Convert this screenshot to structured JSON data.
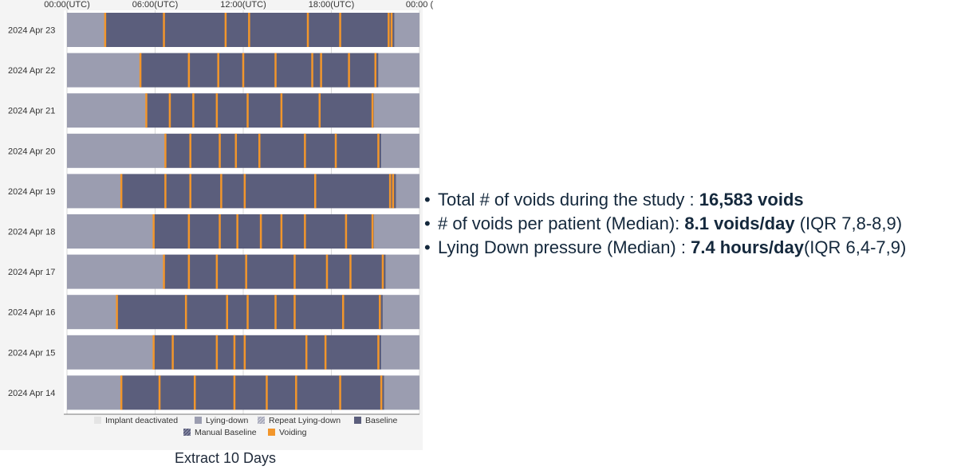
{
  "caption": "Extract 10 Days",
  "stats": [
    {
      "text": "Total # of voids during the study : ",
      "value": "16,583 voids",
      "tail": ""
    },
    {
      "text": "# of voids per patient (Median): ",
      "value": "8.1 voids/day",
      "tail": " (IQR 7,8-8,9)"
    },
    {
      "text": "Lying Down pressure (Median) : ",
      "value": "7.4 hours/day",
      "tail": "(IQR 6,4-7,9)"
    }
  ],
  "chart_data": {
    "type": "timeline",
    "x_unit": "hour_utc",
    "xlim": [
      0,
      24
    ],
    "x_ticks": [
      {
        "value": 0,
        "label": "00:00(UTC)"
      },
      {
        "value": 6,
        "label": "06:00(UTC)"
      },
      {
        "value": 12,
        "label": "12:00(UTC)"
      },
      {
        "value": 18,
        "label": "18:00(UTC)"
      },
      {
        "value": 24,
        "label": "00:00 ("
      }
    ],
    "grid": true,
    "legend_position": "bottom",
    "legend": [
      {
        "name": "Implant deactivated",
        "color": "#e4e4e4",
        "pattern": "none"
      },
      {
        "name": "Lying-down",
        "color": "#9b9db0",
        "pattern": "none"
      },
      {
        "name": "Repeat Lying-down",
        "color": "#a6a8ba",
        "pattern": "hatch"
      },
      {
        "name": "Baseline",
        "color": "#5b5e7c",
        "pattern": "none"
      },
      {
        "name": "Manual Baseline",
        "color": "#5b5e7c",
        "pattern": "hatch"
      },
      {
        "name": "Voiding",
        "color": "#f2962b",
        "pattern": "none"
      }
    ],
    "rows": [
      {
        "day": "2024 Apr 23",
        "baseline": [
          2.6,
          22.3
        ],
        "voids": [
          2.6,
          6.6,
          10.8,
          12.4,
          16.4,
          18.6,
          21.9,
          22.1
        ]
      },
      {
        "day": "2024 Apr 22",
        "baseline": [
          5.0,
          21.2
        ],
        "voids": [
          5.0,
          8.3,
          10.3,
          12.0,
          14.2,
          16.7,
          17.3,
          19.2,
          21.0
        ]
      },
      {
        "day": "2024 Apr 21",
        "baseline": [
          5.4,
          20.9
        ],
        "voids": [
          5.4,
          7.0,
          8.6,
          10.2,
          12.3,
          14.6,
          17.2,
          20.8
        ]
      },
      {
        "day": "2024 Apr 20",
        "baseline": [
          6.7,
          21.4
        ],
        "voids": [
          6.7,
          8.4,
          10.4,
          11.5,
          13.1,
          16.2,
          18.3,
          21.2
        ]
      },
      {
        "day": "2024 Apr 19",
        "baseline": [
          3.7,
          22.4
        ],
        "voids": [
          3.7,
          6.7,
          8.4,
          10.5,
          12.1,
          16.9,
          22.0,
          22.2
        ]
      },
      {
        "day": "2024 Apr 18",
        "baseline": [
          5.9,
          20.9
        ],
        "voids": [
          5.9,
          8.3,
          10.4,
          11.6,
          13.2,
          14.6,
          16.2,
          19.0,
          20.8
        ]
      },
      {
        "day": "2024 Apr 17",
        "baseline": [
          6.6,
          21.7
        ],
        "voids": [
          6.6,
          8.3,
          10.2,
          12.2,
          15.5,
          17.7,
          19.3,
          21.5
        ]
      },
      {
        "day": "2024 Apr 16",
        "baseline": [
          3.4,
          21.5
        ],
        "voids": [
          3.4,
          8.1,
          10.9,
          12.3,
          14.2,
          15.5,
          18.8,
          21.3
        ]
      },
      {
        "day": "2024 Apr 15",
        "baseline": [
          5.9,
          21.4
        ],
        "voids": [
          5.9,
          7.2,
          10.2,
          11.4,
          12.1,
          16.3,
          17.6,
          21.2
        ]
      },
      {
        "day": "2024 Apr 14",
        "baseline": [
          3.7,
          21.6
        ],
        "voids": [
          3.7,
          6.3,
          8.7,
          11.4,
          13.6,
          15.6,
          18.6,
          21.4
        ]
      }
    ]
  }
}
